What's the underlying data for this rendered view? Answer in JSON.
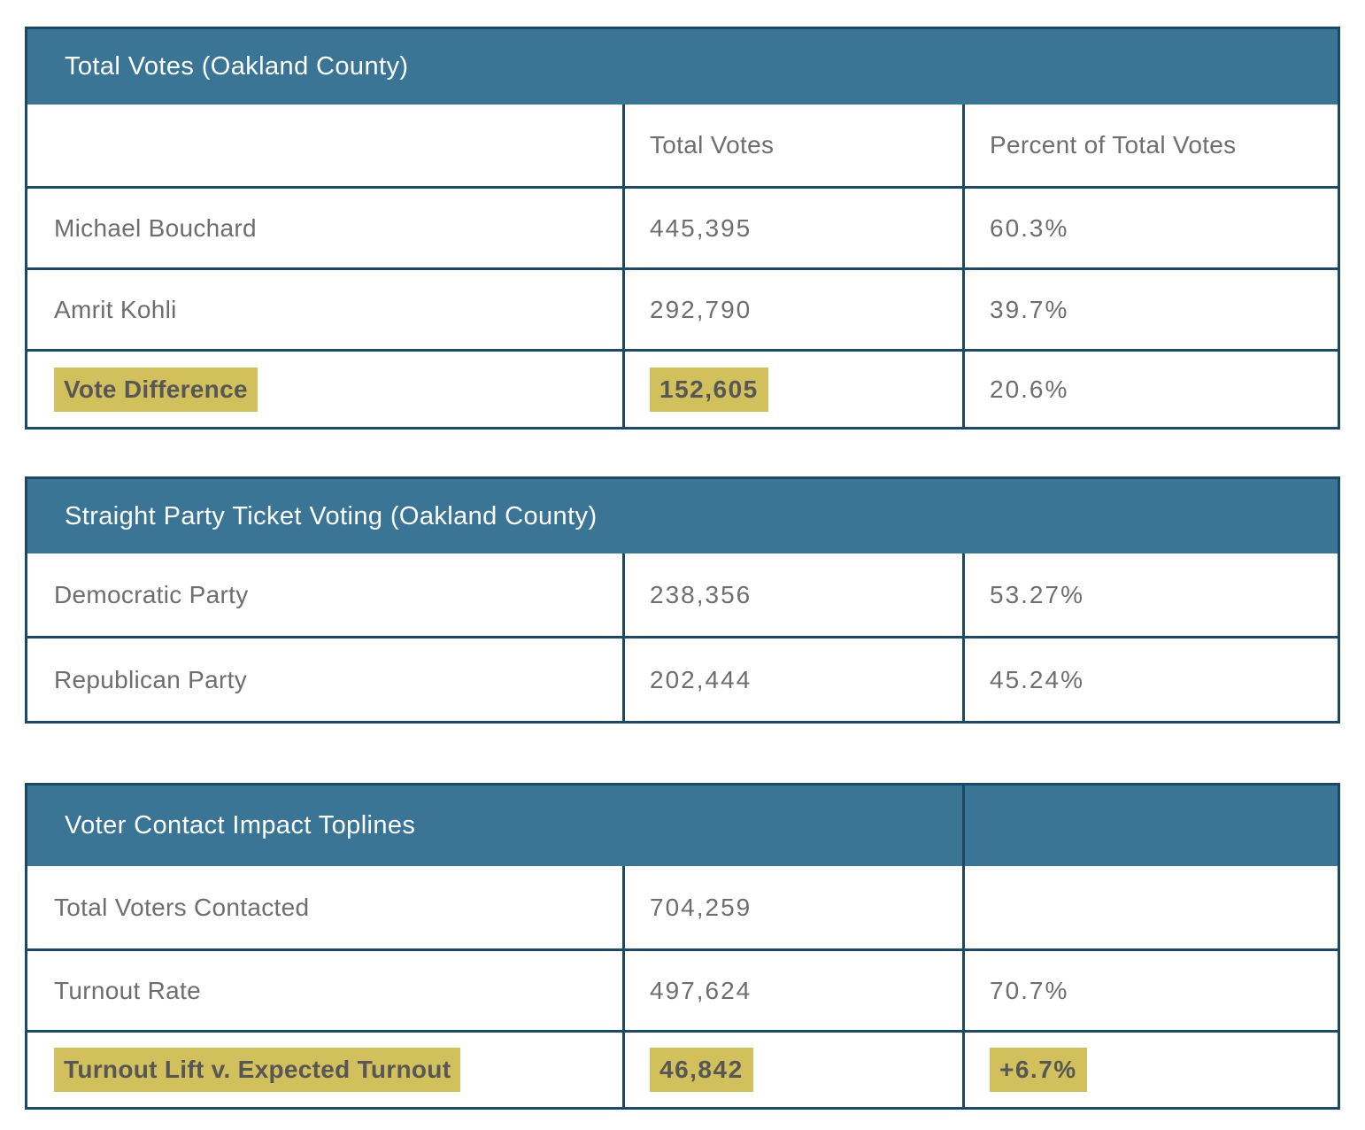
{
  "colors": {
    "header_bg": "#3a7596",
    "border": "#1d4966",
    "highlight": "#d2c05c",
    "body_text": "#6e6e6e",
    "header_text": "#ffffff"
  },
  "table_total_votes": {
    "title": "Total Votes (Oakland County)",
    "columns": [
      "",
      "Total Votes",
      "Percent of Total Votes"
    ],
    "rows": [
      {
        "label": "Michael Bouchard",
        "votes": "445,395",
        "pct": "60.3%",
        "highlight": false
      },
      {
        "label": "Amrit Kohli",
        "votes": "292,790",
        "pct": "39.7%",
        "highlight": false
      },
      {
        "label": "Vote Difference",
        "votes": "152,605",
        "pct": "20.6%",
        "highlight": true,
        "highlighted_cells": [
          "label",
          "votes"
        ]
      }
    ]
  },
  "table_straight_party": {
    "title": "Straight Party Ticket Voting (Oakland County)",
    "rows": [
      {
        "label": "Democratic Party",
        "votes": "238,356",
        "pct": "53.27%",
        "highlight": false
      },
      {
        "label": "Republican Party",
        "votes": "202,444",
        "pct": "45.24%",
        "highlight": false
      }
    ]
  },
  "table_voter_contact": {
    "title": "Voter Contact Impact Toplines",
    "rows": [
      {
        "label": "Total Voters Contacted",
        "votes": "704,259",
        "pct": "",
        "highlight": false
      },
      {
        "label": "Turnout Rate",
        "votes": "497,624",
        "pct": "70.7%",
        "highlight": false
      },
      {
        "label": "Turnout Lift v. Expected Turnout",
        "votes": "46,842",
        "pct": "+6.7%",
        "highlight": true,
        "highlighted_cells": [
          "label",
          "votes",
          "pct"
        ]
      }
    ]
  }
}
